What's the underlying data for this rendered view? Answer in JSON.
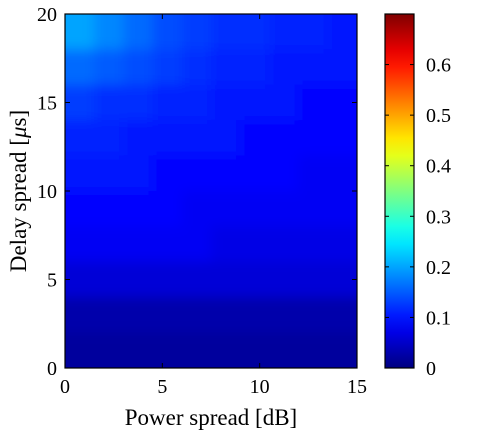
{
  "chart_data": {
    "type": "heatmap",
    "title": "",
    "xlabel": "Power spread [dB]",
    "ylabel_prefix": "Delay spread [",
    "ylabel_symbol": "μ",
    "ylabel_suffix": "s]",
    "xlim": [
      0,
      15
    ],
    "ylim": [
      0,
      20
    ],
    "x_ticks": [
      0,
      5,
      10,
      15
    ],
    "y_ticks": [
      0,
      5,
      10,
      15,
      20
    ],
    "grid": false,
    "colormap": "jet",
    "colorbar": {
      "range": [
        0,
        0.7
      ],
      "ticks": [
        0,
        0.1,
        0.2,
        0.3,
        0.4,
        0.5,
        0.6
      ],
      "tick_labels": [
        "0",
        "0.1",
        "0.2",
        "0.3",
        "0.4",
        "0.5",
        "0.6"
      ]
    },
    "x_centers": [
      0.75,
      2.25,
      3.75,
      5.25,
      6.75,
      8.25,
      9.75,
      11.25,
      12.75,
      14.25
    ],
    "y_centers": [
      19,
      17,
      15,
      13,
      11,
      9,
      7,
      5,
      3,
      1
    ],
    "values": [
      [
        0.2,
        0.18,
        0.16,
        0.14,
        0.13,
        0.12,
        0.12,
        0.11,
        0.11,
        0.1
      ],
      [
        0.16,
        0.15,
        0.14,
        0.13,
        0.12,
        0.11,
        0.11,
        0.1,
        0.1,
        0.1
      ],
      [
        0.13,
        0.12,
        0.12,
        0.11,
        0.11,
        0.1,
        0.1,
        0.1,
        0.09,
        0.09
      ],
      [
        0.11,
        0.11,
        0.1,
        0.1,
        0.1,
        0.1,
        0.09,
        0.09,
        0.09,
        0.09
      ],
      [
        0.1,
        0.1,
        0.1,
        0.09,
        0.09,
        0.09,
        0.09,
        0.09,
        0.08,
        0.08
      ],
      [
        0.09,
        0.09,
        0.09,
        0.09,
        0.08,
        0.08,
        0.08,
        0.08,
        0.08,
        0.08
      ],
      [
        0.08,
        0.08,
        0.08,
        0.08,
        0.08,
        0.07,
        0.07,
        0.07,
        0.07,
        0.07
      ],
      [
        0.06,
        0.06,
        0.06,
        0.06,
        0.06,
        0.06,
        0.06,
        0.06,
        0.06,
        0.06
      ],
      [
        0.03,
        0.03,
        0.03,
        0.03,
        0.03,
        0.03,
        0.03,
        0.03,
        0.03,
        0.03
      ],
      [
        0.02,
        0.02,
        0.02,
        0.02,
        0.02,
        0.02,
        0.02,
        0.02,
        0.02,
        0.02
      ]
    ]
  }
}
